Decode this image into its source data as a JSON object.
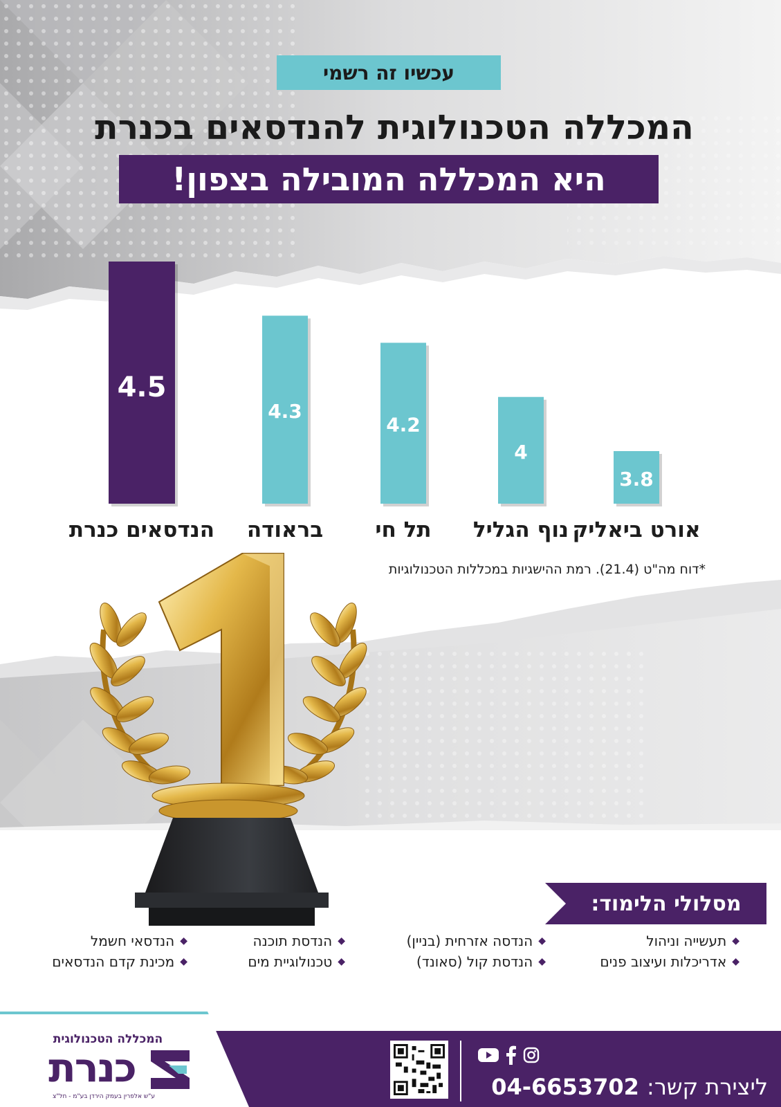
{
  "header": {
    "tag": "עכשיו זה רשמי",
    "headline": "המכללה הטכנולוגית להנדסאים בכנרת",
    "banner": "היא המכללה המובילה בצפון!"
  },
  "chart_data": {
    "type": "bar",
    "categories": [
      "הנדסאים כנרת",
      "בראודה",
      "תל חי",
      "נוף הגליל",
      "אורט ביאליק"
    ],
    "values": [
      4.5,
      4.3,
      4.2,
      4,
      3.8
    ],
    "value_labels": [
      "4.5",
      "4.3",
      "4.2",
      "4",
      "3.8"
    ],
    "colors": [
      "#4a2266",
      "#6cc6cf",
      "#6cc6cf",
      "#6cc6cf",
      "#6cc6cf"
    ],
    "note": "*דוח מה\"ט (21.4). רמת ההישגיות במכללות הטכנולוגיות",
    "grid": false,
    "legend": "none"
  },
  "programs": {
    "title": "מסלולי הלימוד:",
    "col1": [
      "תעשייה וניהול",
      "אדריכלות ועיצוב פנים"
    ],
    "col2": [
      "הנדסה אזרחית (בניין)",
      "הנדסת קול (סאונד)"
    ],
    "col3": [
      "הנדסת תוכנה",
      "טכנולוגיית מים"
    ],
    "col4": [
      "הנדסאי חשמל",
      "מכינת קדם הנדסאים"
    ]
  },
  "footer": {
    "contact_label": "ליצירת קשר:",
    "phone": "04-6653702",
    "logo_top": "המכללה הטכנולוגית",
    "logo_main": "כנרת",
    "logo_sub": "ע\"ש אלפרין בעמק הירדן בע\"מ - חל\"צ",
    "social_icons": [
      "instagram-icon",
      "facebook-icon",
      "youtube-icon"
    ]
  },
  "colors": {
    "purple": "#4a2266",
    "teal": "#6cc6cf",
    "gold": "#d9ad3c"
  }
}
